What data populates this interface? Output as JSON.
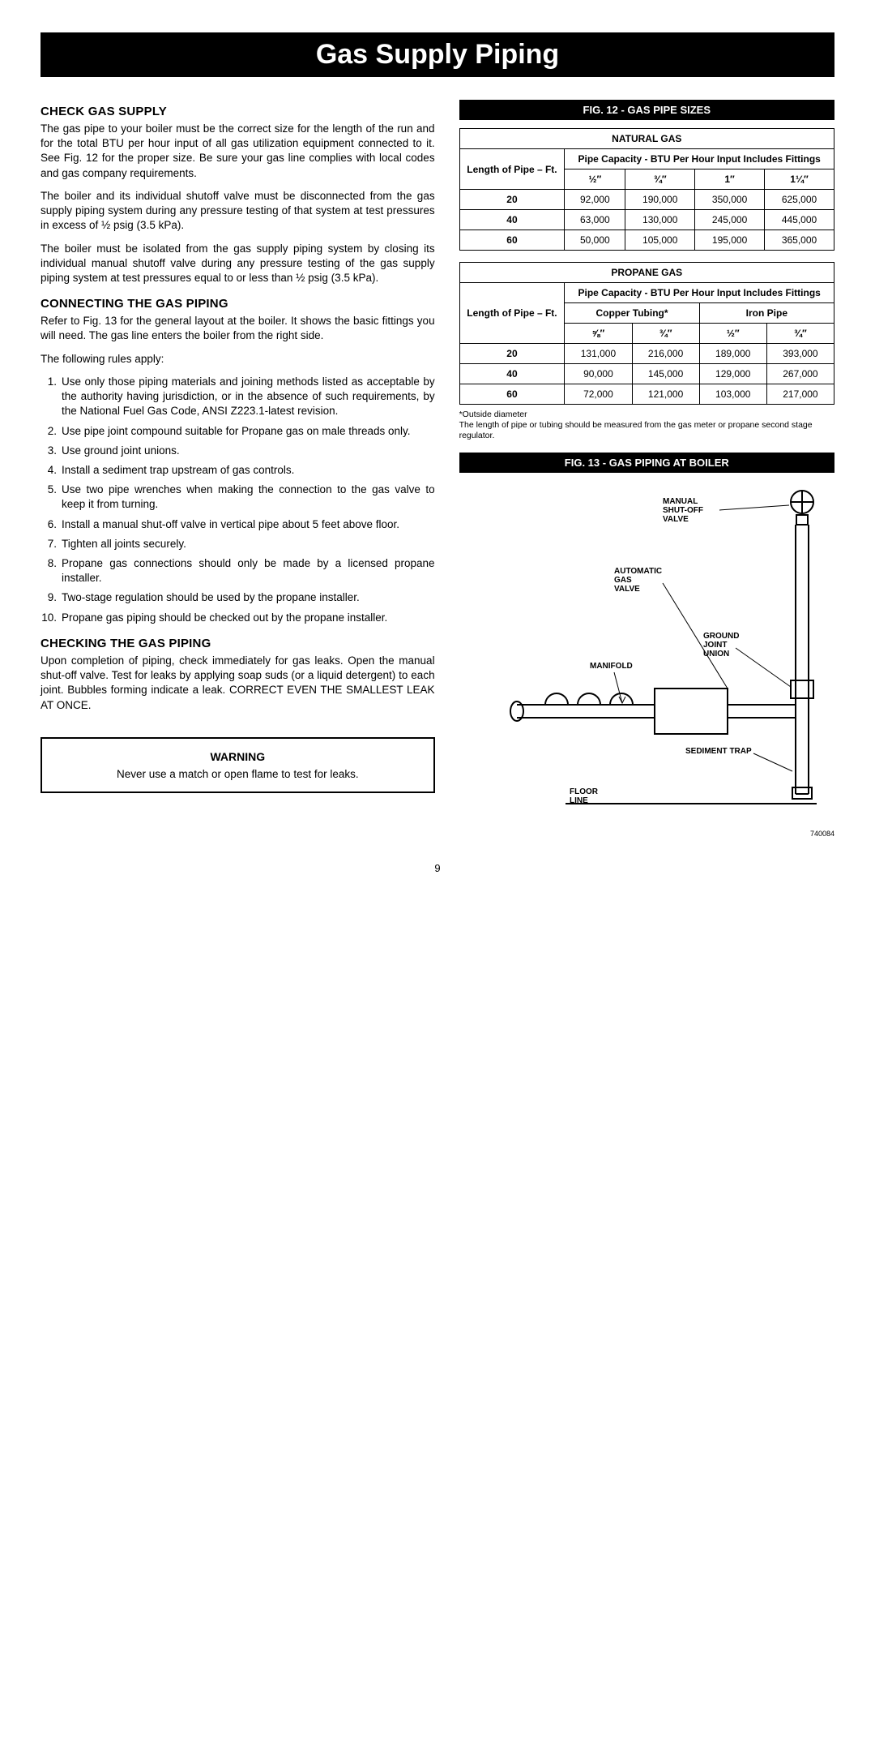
{
  "title": "Gas Supply Piping",
  "left": {
    "h1": "CHECK GAS SUPPLY",
    "p1": "The gas pipe to your boiler must be the correct size for the length of the run and for the total BTU per hour input of all gas utilization equipment connected to it. See Fig. 12 for the proper size. Be sure your gas line complies with local codes and gas company requirements.",
    "p2": "The boiler and its individual shutoff valve must be disconnected from the gas supply piping system during any pressure testing of that system at test pressures in excess of ½ psig (3.5 kPa).",
    "p3": "The boiler must be isolated from the gas supply piping system by closing its individual manual shutoff valve during any pressure testing of the gas supply piping system at test pressures equal to or less than ½ psig (3.5 kPa).",
    "h2": "CONNECTING THE GAS PIPING",
    "p4": "Refer to Fig. 13 for the general layout at the boiler. It shows the basic fittings you will need. The gas line enters the boiler from the right side.",
    "p5": "The following rules apply:",
    "rules": [
      "Use only those piping materials and joining methods listed as acceptable by the authority having jurisdiction, or in the absence of such requirements, by the National Fuel Gas Code, ANSI Z223.1-latest revision.",
      "Use pipe joint compound suitable for Propane gas on male threads only.",
      "Use ground joint unions.",
      "Install a sediment trap upstream of gas controls.",
      "Use two pipe wrenches when making the connection to the gas valve to keep it from turning.",
      "Install a manual shut-off valve in vertical pipe about 5 feet above floor.",
      "Tighten all joints securely.",
      "Propane gas connections should only be made by a licensed propane installer.",
      "Two-stage regulation should be used by the propane installer.",
      "Propane gas piping should be checked out by the propane installer."
    ],
    "h3": "CHECKING THE GAS PIPING",
    "p6": "Upon completion of piping, check immediately for gas leaks. Open the manual shut-off valve. Test for leaks by applying soap suds (or a liquid detergent) to each joint. Bubbles forming indicate a leak. CORRECT EVEN THE SMALLEST LEAK AT ONCE.",
    "warn_title": "WARNING",
    "warn_text": "Never use a match or open flame to test for leaks."
  },
  "fig12": {
    "title": "FIG. 12 - GAS PIPE SIZES",
    "natgas": {
      "title": "NATURAL GAS",
      "rowhead": "Length of Pipe – Ft.",
      "subhead": "Pipe Capacity - BTU Per Hour Input Includes Fittings",
      "sizes": [
        "½″",
        "¾″",
        "1″",
        "1¼″"
      ],
      "rows": [
        {
          "len": "20",
          "v": [
            "92,000",
            "190,000",
            "350,000",
            "625,000"
          ]
        },
        {
          "len": "40",
          "v": [
            "63,000",
            "130,000",
            "245,000",
            "445,000"
          ]
        },
        {
          "len": "60",
          "v": [
            "50,000",
            "105,000",
            "195,000",
            "365,000"
          ]
        }
      ]
    },
    "propane": {
      "title": "PROPANE GAS",
      "rowhead": "Length of Pipe – Ft.",
      "subhead": "Pipe Capacity - BTU Per Hour Input Includes Fittings",
      "cat1": "Copper Tubing*",
      "cat2": "Iron Pipe",
      "sizes": [
        "⅝″",
        "¾″",
        "½″",
        "¾″"
      ],
      "rows": [
        {
          "len": "20",
          "v": [
            "131,000",
            "216,000",
            "189,000",
            "393,000"
          ]
        },
        {
          "len": "40",
          "v": [
            "90,000",
            "145,000",
            "129,000",
            "267,000"
          ]
        },
        {
          "len": "60",
          "v": [
            "72,000",
            "121,000",
            "103,000",
            "217,000"
          ]
        }
      ]
    },
    "footnote1": "*Outside diameter",
    "footnote2": "The length of pipe or tubing should be measured from the gas meter or propane second stage regulator."
  },
  "fig13": {
    "title": "FIG. 13 - GAS PIPING AT BOILER",
    "labels": {
      "manual": "MANUAL SHUT-OFF VALVE",
      "auto": "AUTOMATIC GAS VALVE",
      "ground": "GROUND JOINT UNION",
      "manifold": "MANIFOLD",
      "sediment": "SEDIMENT TRAP",
      "floor": "FLOOR LINE"
    },
    "colors": {
      "stroke": "#000000",
      "bg": "#ffffff"
    },
    "linewidth": 2
  },
  "pagenum": "9",
  "docnum": "740084"
}
